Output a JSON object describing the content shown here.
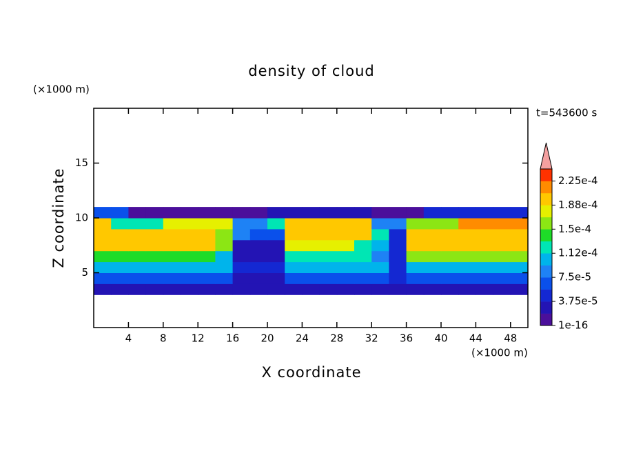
{
  "chart_data": {
    "type": "heatmap",
    "title": "density of cloud",
    "xlabel": "X coordinate",
    "ylabel": "Z coordinate",
    "x_unit": "(×1000 m)",
    "y_unit": "(×1000 m)",
    "annotation": "t=543600 s",
    "xlim": [
      0,
      50
    ],
    "ylim": [
      0,
      20
    ],
    "xticks": [
      4,
      8,
      12,
      16,
      20,
      24,
      28,
      32,
      36,
      40,
      44,
      48
    ],
    "yticks": [
      5,
      10,
      15
    ],
    "x": [
      1,
      3,
      5,
      7,
      9,
      11,
      13,
      15,
      17,
      19,
      21,
      23,
      25,
      27,
      29,
      31,
      33,
      35,
      37,
      39,
      41,
      43,
      45,
      47,
      49
    ],
    "y": [
      3.5,
      4.5,
      5.5,
      6.5,
      7.5,
      8.5,
      9.5,
      10.5
    ],
    "values": [
      [
        3e-05,
        3e-05,
        3e-05,
        3e-05,
        3e-05,
        3e-05,
        3e-05,
        3e-05,
        2e-05,
        2e-05,
        2e-05,
        3e-05,
        3e-05,
        3e-05,
        3e-05,
        3e-05,
        3e-05,
        3e-05,
        3e-05,
        3e-05,
        3e-05,
        3e-05,
        3e-05,
        3e-05,
        3e-05
      ],
      [
        7e-05,
        7e-05,
        7e-05,
        7e-05,
        7e-05,
        7e-05,
        7e-05,
        7e-05,
        3e-05,
        3e-05,
        3e-05,
        7e-05,
        7e-05,
        7e-05,
        7e-05,
        7e-05,
        7e-05,
        5e-05,
        7e-05,
        7e-05,
        7e-05,
        7e-05,
        7e-05,
        7e-05,
        7e-05
      ],
      [
        0.00011,
        0.00011,
        0.00011,
        0.00011,
        0.00011,
        0.00011,
        0.00011,
        0.00011,
        4e-05,
        4e-05,
        4e-05,
        0.0001,
        0.0001,
        0.0001,
        0.0001,
        0.0001,
        0.0001,
        5e-05,
        0.00011,
        0.00011,
        0.00011,
        0.00011,
        0.00011,
        0.00011,
        0.00011
      ],
      [
        0.00014,
        0.00014,
        0.00014,
        0.00014,
        0.00014,
        0.00014,
        0.00014,
        0.00011,
        3e-05,
        3e-05,
        3e-05,
        0.00012,
        0.00012,
        0.00012,
        0.00012,
        0.00012,
        8e-05,
        4e-05,
        0.00015,
        0.00015,
        0.00015,
        0.00015,
        0.00015,
        0.00015,
        0.00015
      ],
      [
        0.00019,
        0.00019,
        0.00019,
        0.00019,
        0.00019,
        0.00019,
        0.00019,
        0.00015,
        3e-05,
        3e-05,
        3e-05,
        0.00018,
        0.00018,
        0.00018,
        0.00018,
        0.00012,
        0.0001,
        4e-05,
        0.00019,
        0.00019,
        0.00019,
        0.00019,
        0.00019,
        0.00019,
        0.00019
      ],
      [
        0.0002,
        0.0002,
        0.0002,
        0.0002,
        0.0002,
        0.0002,
        0.0002,
        0.00016,
        9e-05,
        6e-05,
        6e-05,
        0.0002,
        0.0002,
        0.0002,
        0.0002,
        0.0002,
        0.00013,
        5e-05,
        0.0002,
        0.0002,
        0.0002,
        0.0002,
        0.0002,
        0.0002,
        0.0002
      ],
      [
        0.00019,
        0.00012,
        0.00012,
        0.00012,
        0.00017,
        0.00017,
        0.00017,
        0.00017,
        8e-05,
        8e-05,
        0.00013,
        0.0002,
        0.0002,
        0.0002,
        0.0002,
        0.0002,
        8e-05,
        8e-05,
        0.00016,
        0.00016,
        0.00016,
        0.00021,
        0.00021,
        0.00021,
        0.00021
      ],
      [
        6e-05,
        6e-05,
        1e-05,
        1e-05,
        1e-05,
        1e-05,
        1e-05,
        1e-05,
        1e-05,
        1e-05,
        3e-05,
        3e-05,
        3e-05,
        3e-05,
        3e-05,
        3e-05,
        1e-05,
        1e-05,
        1e-05,
        4e-05,
        4e-05,
        4e-05,
        4e-05,
        4e-05,
        4e-05
      ]
    ],
    "colorbar": {
      "levels": [
        1e-16,
        1.875e-05,
        3.75e-05,
        5.625e-05,
        7.5e-05,
        9.375e-05,
        0.0001125,
        0.00013125,
        0.00015,
        0.00016875,
        0.0001875,
        0.00020625,
        0.000225,
        0.00024375
      ],
      "colors": [
        "#4b0f9b",
        "#2314b4",
        "#1428d2",
        "#0a50eb",
        "#1e82f5",
        "#00b4eb",
        "#00e6b4",
        "#1edc28",
        "#8ce614",
        "#e6f000",
        "#ffc800",
        "#ff8c00",
        "#ff3200"
      ],
      "extend_color": "#f4a0a0",
      "ticks": [
        {
          "value": 1e-16,
          "label": "1e-16"
        },
        {
          "value": 3.75e-05,
          "label": "3.75e-5"
        },
        {
          "value": 7.5e-05,
          "label": "7.5e-5"
        },
        {
          "value": 0.0001125,
          "label": "1.12e-4"
        },
        {
          "value": 0.00015,
          "label": "1.5e-4"
        },
        {
          "value": 0.0001875,
          "label": "1.88e-4"
        },
        {
          "value": 0.000225,
          "label": "2.25e-4"
        }
      ]
    }
  }
}
